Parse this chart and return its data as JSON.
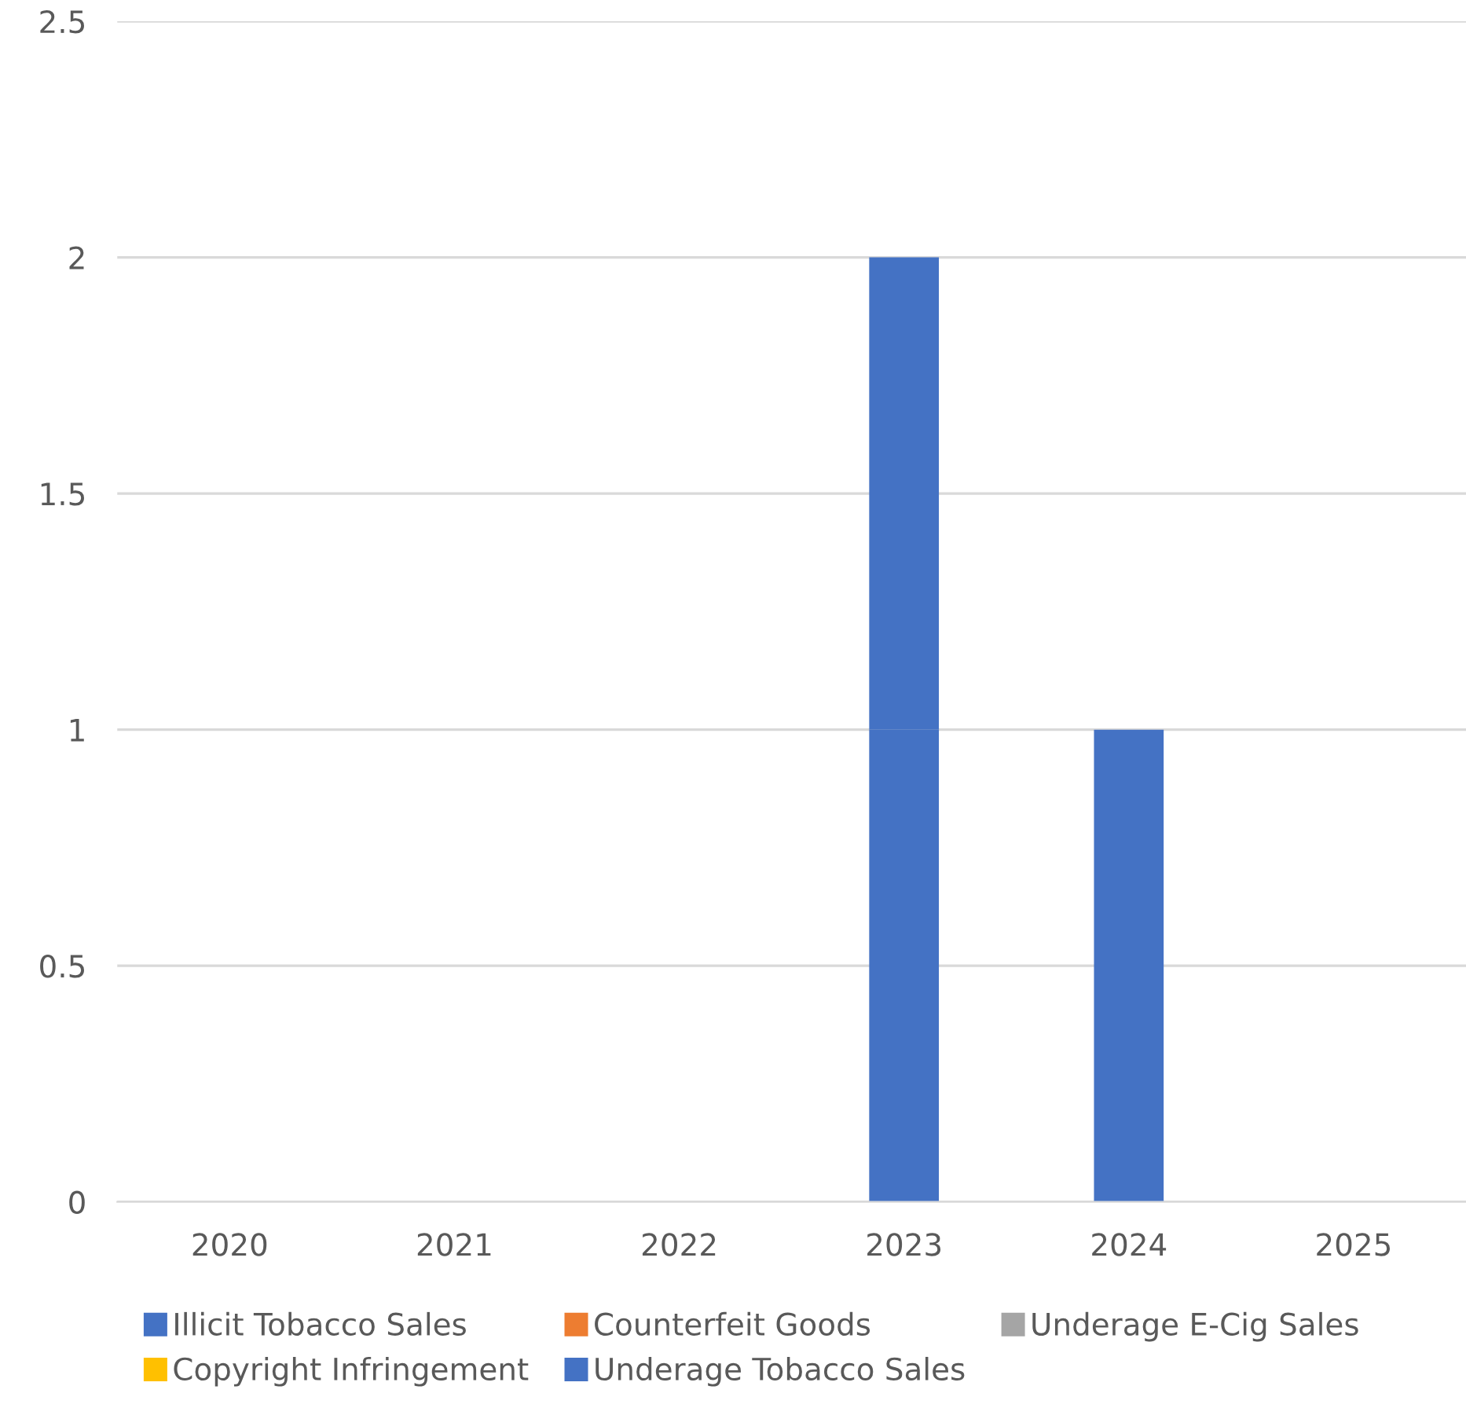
{
  "chart_data": {
    "type": "bar",
    "stacked": true,
    "categories": [
      "2020",
      "2021",
      "2022",
      "2023",
      "2024",
      "2025"
    ],
    "series": [
      {
        "name": "Illicit Tobacco Sales",
        "color": "#4472c4",
        "values": [
          0,
          0,
          0,
          1,
          1,
          0
        ]
      },
      {
        "name": "Counterfeit Goods",
        "color": "#ed7d31",
        "values": [
          0,
          0,
          0,
          0,
          0,
          0
        ]
      },
      {
        "name": "Underage E-Cig Sales",
        "color": "#a5a5a5",
        "values": [
          0,
          0,
          0,
          0,
          0,
          0
        ]
      },
      {
        "name": "Copyright Infringement",
        "color": "#ffc000",
        "values": [
          0,
          0,
          0,
          0,
          0,
          0
        ]
      },
      {
        "name": "Underage Tobacco Sales",
        "color": "#4472c4",
        "values": [
          0,
          0,
          0,
          1,
          0,
          0
        ]
      }
    ],
    "ylim": [
      0,
      2.5
    ],
    "yticks": [
      0,
      0.5,
      1,
      1.5,
      2,
      2.5
    ],
    "grid": "y",
    "legend": "bottom"
  }
}
